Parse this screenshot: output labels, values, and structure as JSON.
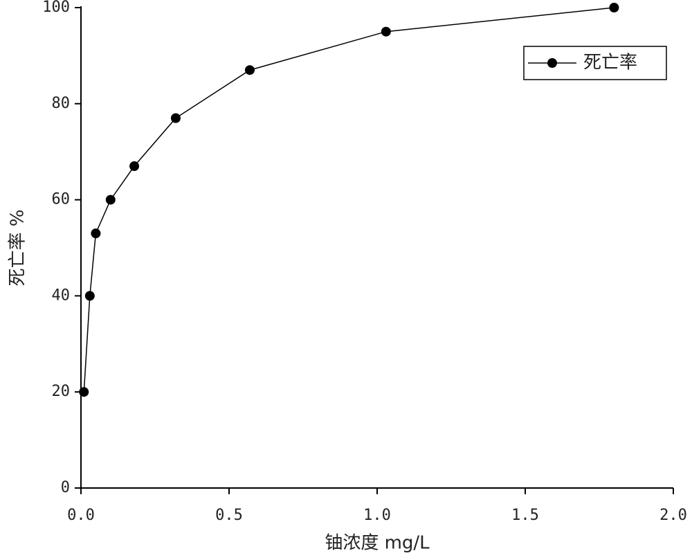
{
  "chart_data": {
    "type": "line",
    "x_label": "铀浓度 mg/L",
    "y_label": "死亡率 %",
    "series": [
      {
        "name": "死亡率",
        "color": "#000000",
        "x": [
          0.01,
          0.03,
          0.05,
          0.1,
          0.18,
          0.32,
          0.57,
          1.03,
          1.8
        ],
        "values": [
          20,
          40,
          53,
          60,
          67,
          77,
          87,
          95,
          100
        ]
      }
    ],
    "xlim": [
      0,
      2
    ],
    "xticks": [
      {
        "value": 0,
        "label": "0.0"
      },
      0.5,
      {
        "value": 1,
        "label": "1.0"
      },
      1.5,
      {
        "value": 2,
        "label": "2.0"
      }
    ],
    "ylim": [
      0,
      100
    ],
    "yticks": [
      0,
      20,
      40,
      60,
      80,
      100
    ],
    "legend": "upper right"
  }
}
